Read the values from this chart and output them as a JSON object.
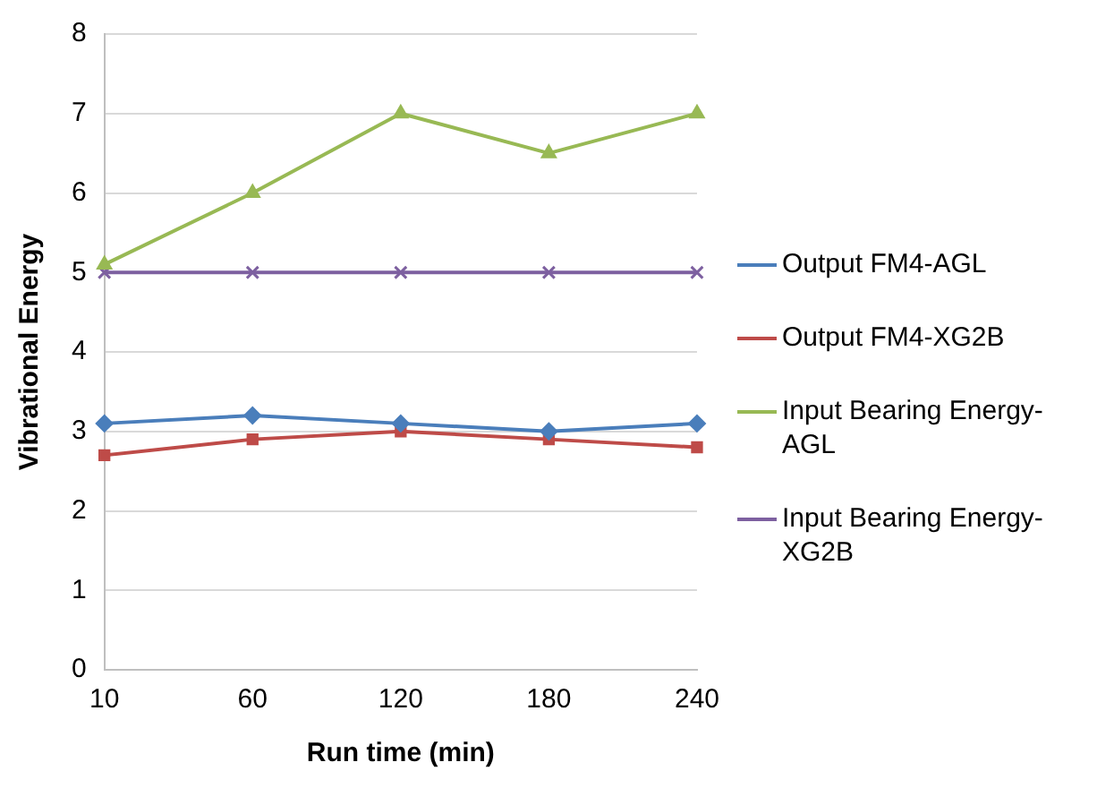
{
  "chart_data": {
    "type": "line",
    "xlabel": "Run time (min)",
    "ylabel": "Vibrational Energy",
    "categories": [
      "10",
      "60",
      "120",
      "180",
      "240"
    ],
    "series": [
      {
        "name": "Output FM4-AGL",
        "color": "#4a7ebb",
        "marker": "diamond",
        "values": [
          3.1,
          3.2,
          3.1,
          3.0,
          3.1
        ]
      },
      {
        "name": "Output FM4-XG2B",
        "color": "#be4b48",
        "marker": "square",
        "values": [
          2.7,
          2.9,
          3.0,
          2.9,
          2.8
        ]
      },
      {
        "name": "Input Bearing Energy-AGL",
        "color": "#98b954",
        "marker": "triangle",
        "values": [
          5.1,
          6.0,
          7.0,
          6.5,
          7.0
        ]
      },
      {
        "name": "Input Bearing Energy-XG2B",
        "color": "#7d60a0",
        "marker": "cross",
        "values": [
          5,
          5,
          5,
          5,
          5
        ]
      }
    ],
    "ylim": [
      0,
      8
    ],
    "yticks": [
      0,
      1,
      2,
      3,
      4,
      5,
      6,
      7,
      8
    ],
    "grid": "y",
    "legend": "right",
    "line_style": "solid"
  }
}
